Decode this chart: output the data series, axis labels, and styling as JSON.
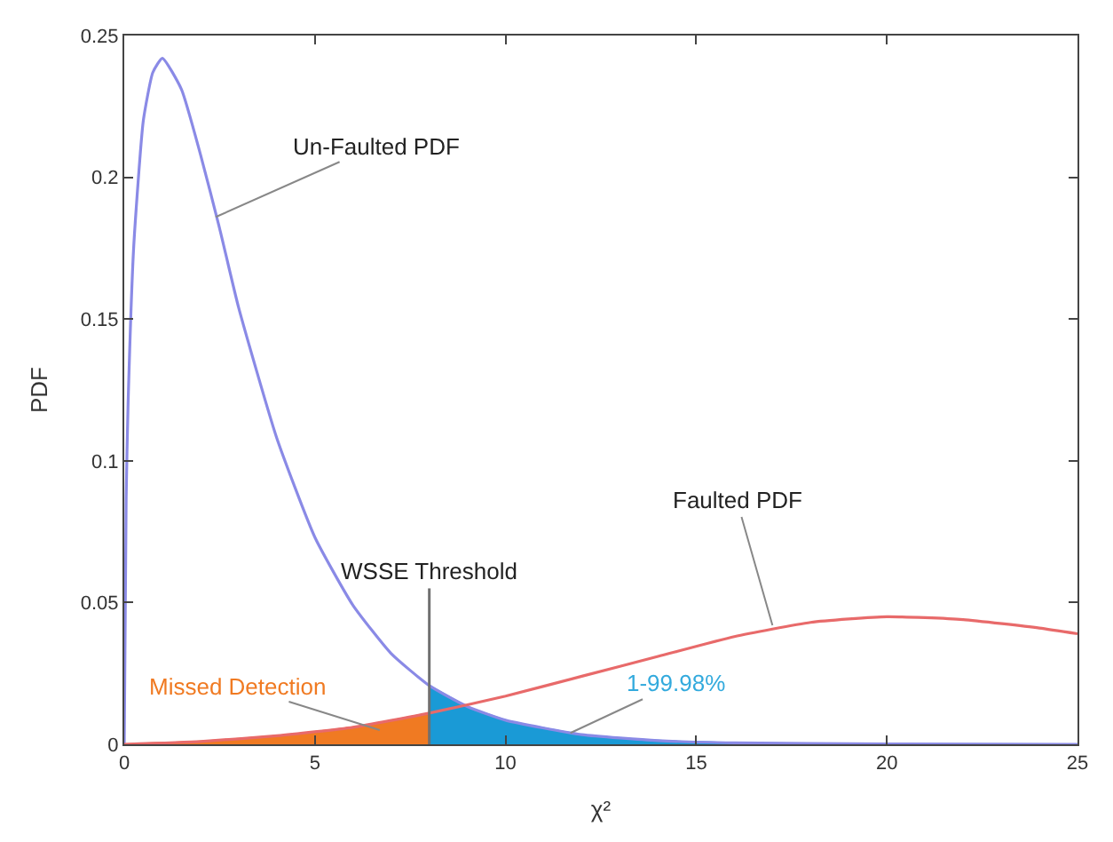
{
  "chart_data": {
    "type": "line",
    "xlabel": "χ²",
    "ylabel": "PDF",
    "xlim": [
      0,
      25
    ],
    "ylim": [
      0,
      0.25
    ],
    "xticks": [
      0,
      5,
      10,
      15,
      20,
      25
    ],
    "yticks": [
      0,
      0.05,
      0.1,
      0.15,
      0.2,
      0.25
    ],
    "series": [
      {
        "type": "area",
        "color": "#f07a22",
        "x": [
          0,
          2,
          4,
          6,
          8
        ],
        "values": [
          0,
          0.001,
          0.003,
          0.006,
          0.011
        ]
      },
      {
        "type": "area",
        "color": "#1a9ad6",
        "x": [
          8,
          9,
          10,
          12,
          14,
          16,
          20,
          25
        ],
        "values": [
          0.0207,
          0.0133,
          0.0085,
          0.0034,
          0.0013,
          0.0005,
          0.0001,
          0
        ]
      },
      {
        "color": "#8a8ae6",
        "x": [
          0,
          0.05,
          0.1,
          0.25,
          0.5,
          0.75,
          1,
          1.5,
          2,
          2.5,
          3,
          4,
          5,
          6,
          7,
          8,
          9,
          10,
          12,
          14,
          16,
          20,
          25
        ],
        "values": [
          0,
          0.087,
          0.12,
          0.176,
          0.22,
          0.237,
          0.242,
          0.231,
          0.208,
          0.182,
          0.154,
          0.108,
          0.073,
          0.049,
          0.032,
          0.0207,
          0.0133,
          0.0085,
          0.0034,
          0.0013,
          0.0005,
          0.0001,
          0
        ]
      },
      {
        "color": "#e86a6a",
        "x": [
          0,
          2,
          4,
          6,
          8,
          10,
          12,
          14,
          16,
          18,
          20,
          22,
          24,
          25
        ],
        "values": [
          0,
          0.001,
          0.003,
          0.006,
          0.011,
          0.017,
          0.024,
          0.031,
          0.038,
          0.043,
          0.045,
          0.044,
          0.041,
          0.039
        ]
      }
    ],
    "ref_lines": [
      {
        "axis": "x",
        "value": 8,
        "label": "WSSE Threshold",
        "color": "#707070"
      }
    ],
    "annotations": [
      {
        "text": "Un-Faulted PDF",
        "x": 2.4,
        "y": 0.186
      },
      {
        "text": "Faulted PDF",
        "x": 17,
        "y": 0.042
      },
      {
        "text": "Missed Detection",
        "x": 6.7,
        "y": 0.005
      },
      {
        "text": "1-99.98%",
        "x": 11.7,
        "y": 0.004
      }
    ]
  }
}
